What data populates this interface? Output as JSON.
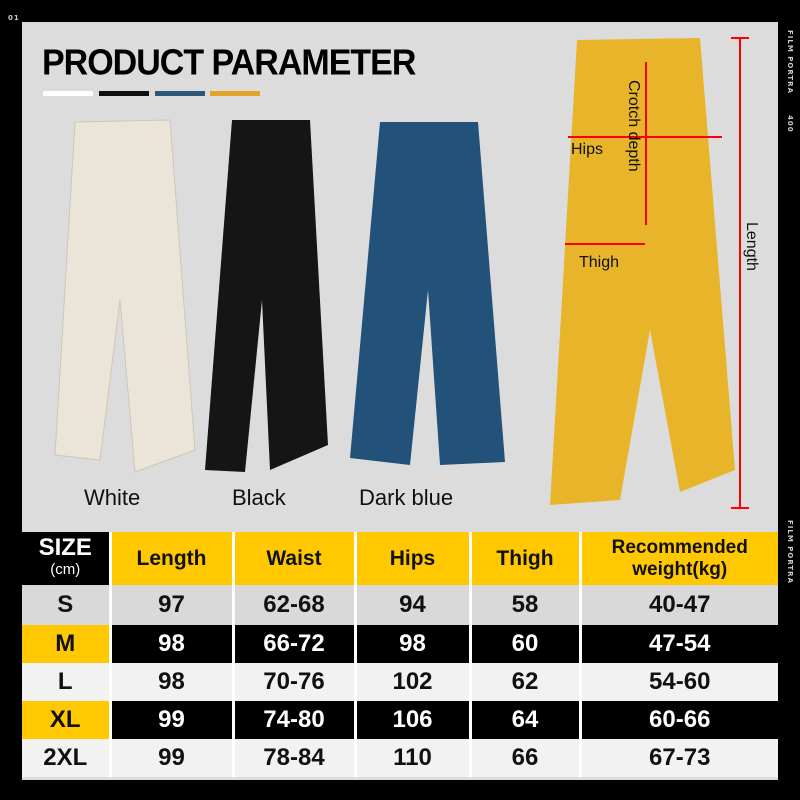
{
  "header": {
    "title": "PRODUCT PARAMETER",
    "swatches": [
      "#ffffff",
      "#111111",
      "#2d5878",
      "#e0a62a"
    ]
  },
  "film": {
    "left_mark": "01",
    "right_text": "FILM PORTRA",
    "right_num": "400"
  },
  "colors": [
    {
      "label": "White",
      "hex": "#ebe4d8"
    },
    {
      "label": "Black",
      "hex": "#151515"
    },
    {
      "label": "Dark blue",
      "hex": "#22527a"
    }
  ],
  "diagram": {
    "pant_color": "#e8b52a",
    "labels": {
      "crotch": "Crotch depth",
      "hips": "Hips",
      "thigh": "Thigh",
      "length": "Length"
    }
  },
  "table": {
    "size_label": "SIZE",
    "size_unit": "(cm)",
    "columns": [
      "Length",
      "Waist",
      "Hips",
      "Thigh",
      "Recommended weight(kg)"
    ],
    "rows": [
      {
        "size": "S",
        "values": [
          "97",
          "62-68",
          "94",
          "58",
          "40-47"
        ]
      },
      {
        "size": "M",
        "values": [
          "98",
          "66-72",
          "98",
          "60",
          "47-54"
        ]
      },
      {
        "size": "L",
        "values": [
          "98",
          "70-76",
          "102",
          "62",
          "54-60"
        ]
      },
      {
        "size": "XL",
        "values": [
          "99",
          "74-80",
          "106",
          "64",
          "60-66"
        ]
      },
      {
        "size": "2XL",
        "values": [
          "99",
          "78-84",
          "110",
          "66",
          "67-73"
        ]
      }
    ]
  }
}
